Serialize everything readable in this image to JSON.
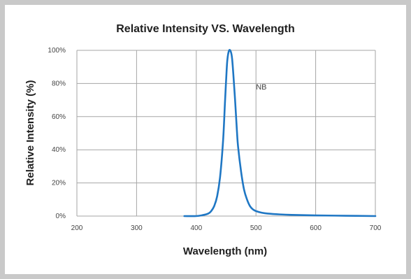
{
  "chart_data": {
    "type": "line",
    "title": "Relative Intensity VS. Wavelength",
    "xlabel": "Wavelength (nm)",
    "ylabel": "Relative Intensity (%)",
    "xlim": [
      200,
      700
    ],
    "ylim": [
      0,
      100
    ],
    "x_ticks": [
      200,
      300,
      400,
      500,
      600,
      700
    ],
    "x_tick_labels": [
      "200",
      "300",
      "400",
      "500",
      "600",
      "700"
    ],
    "y_ticks": [
      0,
      20,
      40,
      60,
      80,
      100
    ],
    "y_tick_labels": [
      "0%",
      "20%",
      "40%",
      "60%",
      "80%",
      "100%"
    ],
    "grid": true,
    "series": [
      {
        "name": "NB",
        "color": "#1f77c4",
        "x": [
          380,
          400,
          410,
          420,
          425,
          430,
          435,
          440,
          445,
          448,
          450,
          452,
          455,
          458,
          460,
          462,
          465,
          468,
          470,
          475,
          480,
          485,
          490,
          495,
          500,
          510,
          520,
          540,
          560,
          600,
          650,
          700
        ],
        "y": [
          0,
          0,
          0.5,
          1.5,
          3,
          6,
          12,
          24,
          46,
          68,
          82,
          94,
          100,
          99,
          95,
          86,
          70,
          52,
          42,
          27,
          16,
          10,
          6,
          4,
          3,
          2,
          1.5,
          1,
          0.7,
          0.4,
          0.2,
          0
        ]
      }
    ],
    "annotations": [
      {
        "text": "NB",
        "x": 500,
        "y": 78
      }
    ]
  }
}
